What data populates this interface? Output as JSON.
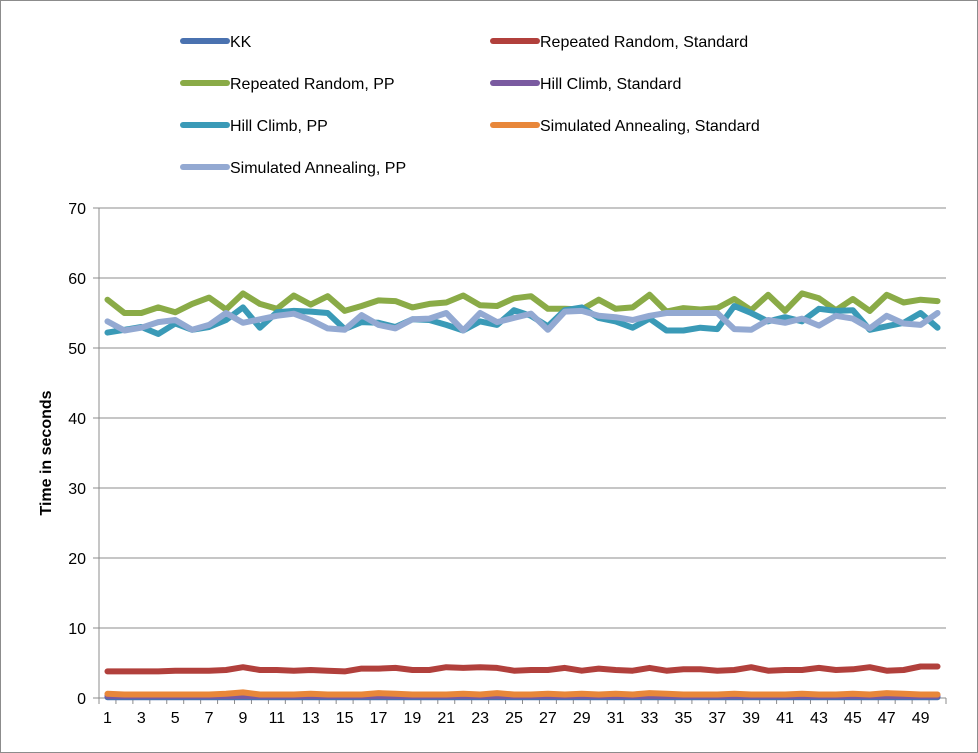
{
  "chart_data": {
    "type": "line",
    "title": "",
    "xlabel": "",
    "ylabel": "Time in seconds",
    "ylim": [
      0,
      70
    ],
    "yticks": [
      0,
      10,
      20,
      30,
      40,
      50,
      60,
      70
    ],
    "x": [
      1,
      2,
      3,
      4,
      5,
      6,
      7,
      8,
      9,
      10,
      11,
      12,
      13,
      14,
      15,
      16,
      17,
      18,
      19,
      20,
      21,
      22,
      23,
      24,
      25,
      26,
      27,
      28,
      29,
      30,
      31,
      32,
      33,
      34,
      35,
      36,
      37,
      38,
      39,
      40,
      41,
      42,
      43,
      44,
      45,
      46,
      47,
      48,
      49,
      50
    ],
    "xtick_labels": [
      "1",
      "3",
      "5",
      "7",
      "9",
      "11",
      "13",
      "15",
      "17",
      "19",
      "21",
      "23",
      "25",
      "27",
      "29",
      "31",
      "33",
      "35",
      "37",
      "39",
      "41",
      "43",
      "45",
      "47",
      "49"
    ],
    "grid": "horizontal",
    "legend_position": "top",
    "series": [
      {
        "name": "KK",
        "color": "#4a72b0",
        "values": [
          0.1,
          0.1,
          0.1,
          0.1,
          0.1,
          0.1,
          0.1,
          0.1,
          0.1,
          0.1,
          0.1,
          0.1,
          0.1,
          0.1,
          0.1,
          0.1,
          0.1,
          0.1,
          0.1,
          0.1,
          0.1,
          0.1,
          0.1,
          0.1,
          0.1,
          0.1,
          0.1,
          0.1,
          0.1,
          0.1,
          0.1,
          0.1,
          0.1,
          0.1,
          0.1,
          0.1,
          0.1,
          0.1,
          0.1,
          0.1,
          0.1,
          0.1,
          0.1,
          0.1,
          0.1,
          0.1,
          0.1,
          0.1,
          0.1,
          0.1
        ]
      },
      {
        "name": "Repeated Random, Standard",
        "color": "#b1403c",
        "values": [
          3.8,
          3.8,
          3.8,
          3.8,
          3.9,
          3.9,
          3.9,
          4.0,
          4.4,
          4.0,
          4.0,
          3.9,
          4.0,
          3.9,
          3.8,
          4.2,
          4.2,
          4.3,
          4.0,
          4.0,
          4.4,
          4.3,
          4.4,
          4.3,
          3.9,
          4.0,
          4.0,
          4.3,
          3.9,
          4.2,
          4.0,
          3.9,
          4.3,
          3.9,
          4.1,
          4.1,
          3.9,
          4.0,
          4.4,
          3.9,
          4.0,
          4.0,
          4.3,
          4.0,
          4.1,
          4.4,
          3.9,
          4.0,
          4.5,
          4.5
        ]
      },
      {
        "name": "Repeated Random, PP",
        "color": "#8aab47",
        "values": [
          56.9,
          55.0,
          55.0,
          55.8,
          55.1,
          56.3,
          57.2,
          55.5,
          57.8,
          56.3,
          55.6,
          57.5,
          56.2,
          57.4,
          55.3,
          56.0,
          56.8,
          56.7,
          55.8,
          56.3,
          56.5,
          57.5,
          56.1,
          56.0,
          57.1,
          57.4,
          55.6,
          55.6,
          55.5,
          56.9,
          55.6,
          55.8,
          57.6,
          55.2,
          55.7,
          55.5,
          55.7,
          57.0,
          55.4,
          57.6,
          55.3,
          57.8,
          57.1,
          55.4,
          57.0,
          55.3,
          57.6,
          56.5,
          56.9,
          56.7
        ]
      },
      {
        "name": "Hill Climb, Standard",
        "color": "#7a5aa0",
        "values": [
          0.3,
          0.3,
          0.3,
          0.3,
          0.3,
          0.3,
          0.3,
          0.3,
          0.3,
          0.3,
          0.3,
          0.3,
          0.3,
          0.3,
          0.3,
          0.3,
          0.3,
          0.3,
          0.3,
          0.3,
          0.3,
          0.3,
          0.3,
          0.3,
          0.3,
          0.3,
          0.3,
          0.3,
          0.3,
          0.3,
          0.3,
          0.3,
          0.3,
          0.3,
          0.3,
          0.3,
          0.3,
          0.3,
          0.3,
          0.3,
          0.3,
          0.3,
          0.3,
          0.3,
          0.3,
          0.3,
          0.3,
          0.3,
          0.3,
          0.3
        ]
      },
      {
        "name": "Hill Climb, PP",
        "color": "#3a9ab7",
        "values": [
          52.2,
          52.6,
          53.0,
          52.0,
          53.5,
          52.6,
          53.0,
          54.0,
          55.8,
          52.9,
          55.1,
          55.3,
          55.2,
          55.0,
          52.7,
          53.7,
          53.6,
          53.0,
          54.1,
          54.0,
          53.3,
          52.5,
          53.8,
          53.3,
          55.4,
          54.6,
          53.1,
          55.4,
          55.8,
          54.3,
          53.8,
          52.9,
          54.2,
          52.5,
          52.5,
          52.9,
          52.7,
          56.0,
          55.0,
          53.8,
          54.4,
          53.8,
          55.6,
          55.3,
          55.4,
          52.6,
          53.1,
          53.6,
          55.0,
          52.9
        ]
      },
      {
        "name": "Simulated Annealing, Standard",
        "color": "#e8873a",
        "values": [
          0.6,
          0.5,
          0.5,
          0.5,
          0.5,
          0.5,
          0.5,
          0.6,
          0.8,
          0.5,
          0.5,
          0.5,
          0.6,
          0.5,
          0.5,
          0.5,
          0.7,
          0.6,
          0.5,
          0.5,
          0.5,
          0.6,
          0.5,
          0.7,
          0.5,
          0.5,
          0.6,
          0.5,
          0.6,
          0.5,
          0.6,
          0.5,
          0.7,
          0.6,
          0.5,
          0.5,
          0.5,
          0.6,
          0.5,
          0.5,
          0.5,
          0.6,
          0.5,
          0.5,
          0.6,
          0.5,
          0.7,
          0.6,
          0.5,
          0.5
        ]
      },
      {
        "name": "Simulated Annealing, PP",
        "color": "#93a9d2",
        "values": [
          53.8,
          52.5,
          52.9,
          53.7,
          54.0,
          52.6,
          53.3,
          55.0,
          53.6,
          54.1,
          54.6,
          54.9,
          54.0,
          52.8,
          52.6,
          54.7,
          53.3,
          52.8,
          54.1,
          54.2,
          55.0,
          52.5,
          55.0,
          53.7,
          54.3,
          54.9,
          52.6,
          55.2,
          55.3,
          54.6,
          54.4,
          54.0,
          54.6,
          55.0,
          55.0,
          55.0,
          55.0,
          52.7,
          52.6,
          54.0,
          53.6,
          54.2,
          53.2,
          54.6,
          54.2,
          52.8,
          54.6,
          53.5,
          53.3,
          55.0
        ]
      }
    ]
  }
}
